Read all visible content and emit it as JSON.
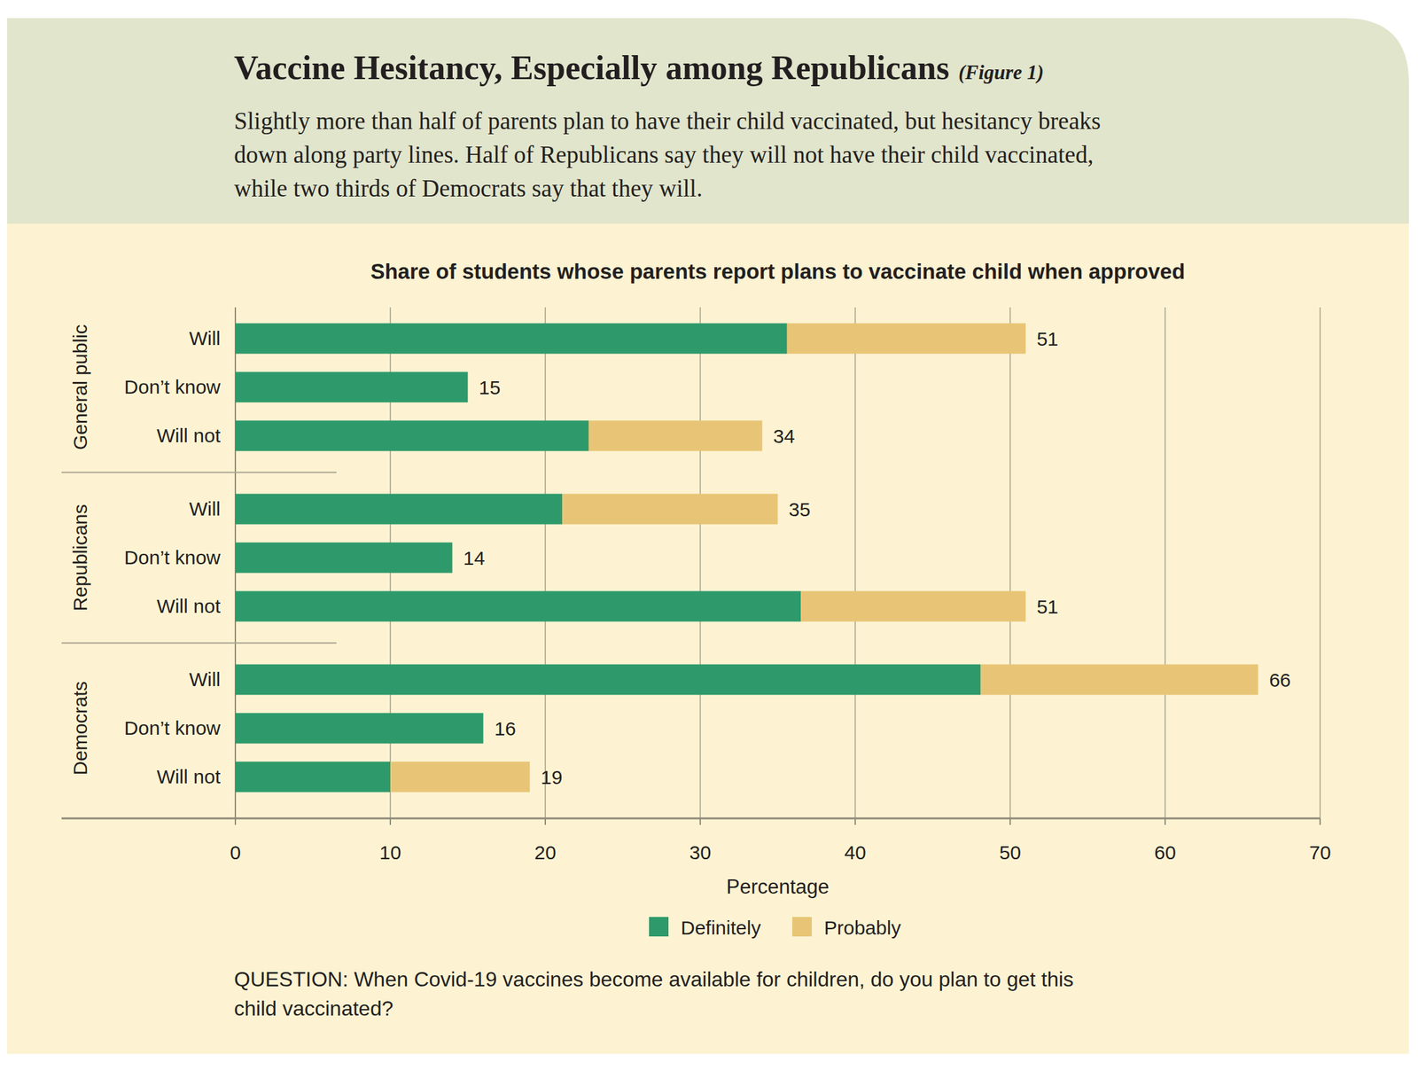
{
  "chart_data": {
    "type": "bar",
    "orientation": "horizontal",
    "stacked": true,
    "grid": true,
    "title": "Vaccine Hesitancy, Especially among Republicans",
    "figure_label": "(Figure 1)",
    "subtitle": [
      "Slightly more than half of parents plan to have their child vaccinated, but hesitancy breaks",
      "down along party lines. Half of Republicans say they will not have their child vaccinated,",
      "while two thirds of Democrats say that they will."
    ],
    "plot_title": "Share of students whose parents report plans to vaccinate child when approved",
    "xlabel": "Percentage",
    "groups": [
      "General public",
      "Republicans",
      "Democrats"
    ],
    "categories": [
      "Will",
      "Don’t know",
      "Will not",
      "Will",
      "Don’t know",
      "Will not",
      "Will",
      "Don’t know",
      "Will not"
    ],
    "series": [
      {
        "name": "Definitely",
        "color": "#2e9a6b",
        "values": [
          35.6,
          15,
          22.8,
          21.1,
          14,
          36.5,
          48.1,
          16,
          10
        ]
      },
      {
        "name": "Probably",
        "color": "#e8c576",
        "values": [
          15.4,
          0,
          11.2,
          13.9,
          0,
          14.5,
          17.9,
          0,
          9
        ]
      }
    ],
    "totals": [
      51,
      15,
      34,
      35,
      14,
      51,
      66,
      16,
      19
    ],
    "xlim": [
      0,
      70
    ],
    "xticks": [
      0,
      10,
      20,
      30,
      40,
      50,
      60,
      70
    ],
    "legend": "bottom",
    "note": [
      "QUESTION: When Covid-19 vaccines become available for children, do you plan to get this",
      "child vaccinated?"
    ]
  }
}
